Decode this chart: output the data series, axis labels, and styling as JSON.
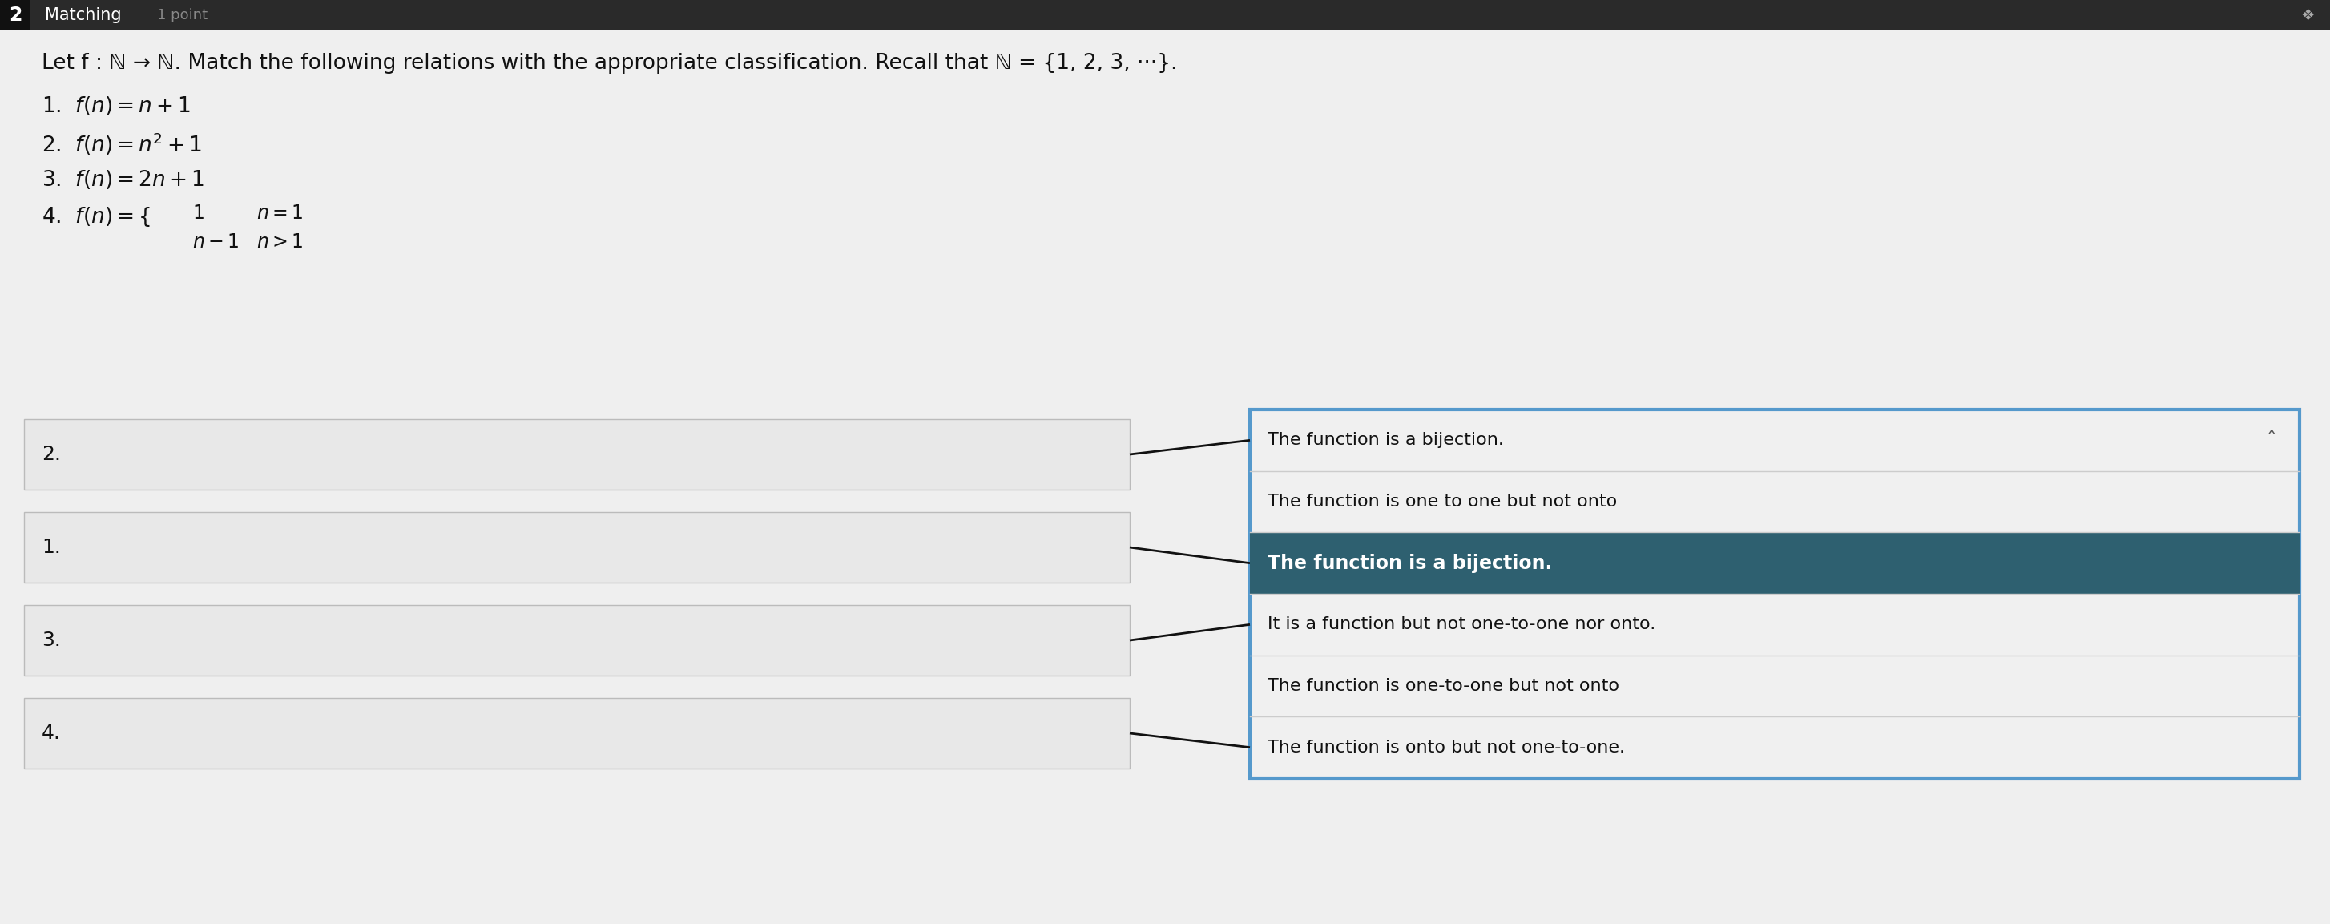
{
  "title_num": "2",
  "title_type": "Matching",
  "title_points": "1 point",
  "bg_color": "#d8d8d8",
  "header_bg": "#2a2a2a",
  "header_text_color": "#ffffff",
  "header_points_color": "#888888",
  "question_text": "Let f : ℕ → ℕ. Match the following relations with the appropriate classification. Recall that ℕ = {1, 2, 3, ⋅⋅⋅}.",
  "left_boxes": [
    "2.",
    "1.",
    "3.",
    "4."
  ],
  "right_options": [
    "The function is a bijection.",
    "The function is one to one but not onto",
    "The function is a bijection.",
    "It is a function but not one-to-one nor onto.",
    "The function is one-to-one but not onto",
    "The function is onto but not one-to-one."
  ],
  "highlighted_row": 2,
  "highlighted_bg": "#2e6070",
  "highlighted_text_color": "#ffffff",
  "normal_text_color": "#111111",
  "right_panel_border": "#5599cc",
  "line_color": "#111111",
  "caret_symbol": "ˆ",
  "connections": [
    0,
    2,
    3,
    5
  ]
}
